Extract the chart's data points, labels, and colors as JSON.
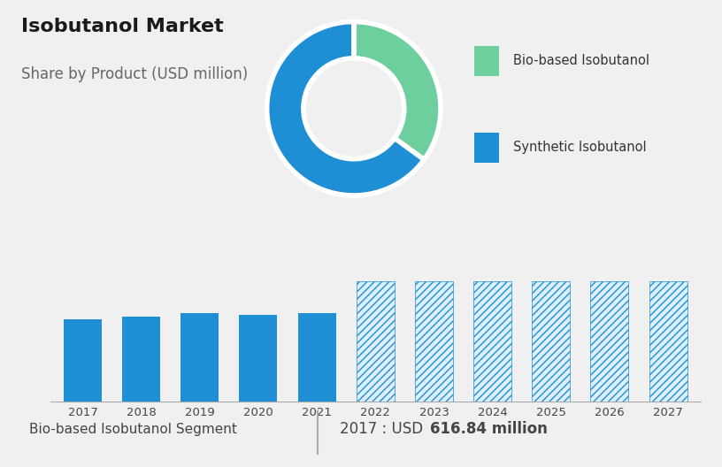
{
  "title": "Isobutanol Market",
  "subtitle": "Share by Product (USD million)",
  "pie_labels": [
    "Bio-based Isobutanol",
    "Synthetic Isobutanol"
  ],
  "pie_values": [
    35,
    65
  ],
  "pie_colors": [
    "#6dcf9e",
    "#1e8fd5"
  ],
  "bar_years_solid": [
    2017,
    2018,
    2019,
    2020,
    2021
  ],
  "bar_years_hatched": [
    2022,
    2023,
    2024,
    2025,
    2026,
    2027
  ],
  "bar_values_solid": [
    617,
    640,
    665,
    650,
    662
  ],
  "bar_values_hatched": [
    900,
    900,
    900,
    900,
    900,
    900
  ],
  "bar_color_solid": "#1e8fd5",
  "bar_color_hatched": "#1e8fd5",
  "hatch_pattern": "////",
  "top_bg_color": "#cdd8e8",
  "bottom_bg_color": "#f0f0f0",
  "footer_left": "Bio-based Isobutanol Segment",
  "footer_right_normal": "2017 : USD ",
  "footer_right_bold": "616.84 million",
  "ylim": [
    0,
    1050
  ],
  "grid_color": "#d0d0d0",
  "title_fontsize": 16,
  "subtitle_fontsize": 12,
  "bar_width": 0.65
}
